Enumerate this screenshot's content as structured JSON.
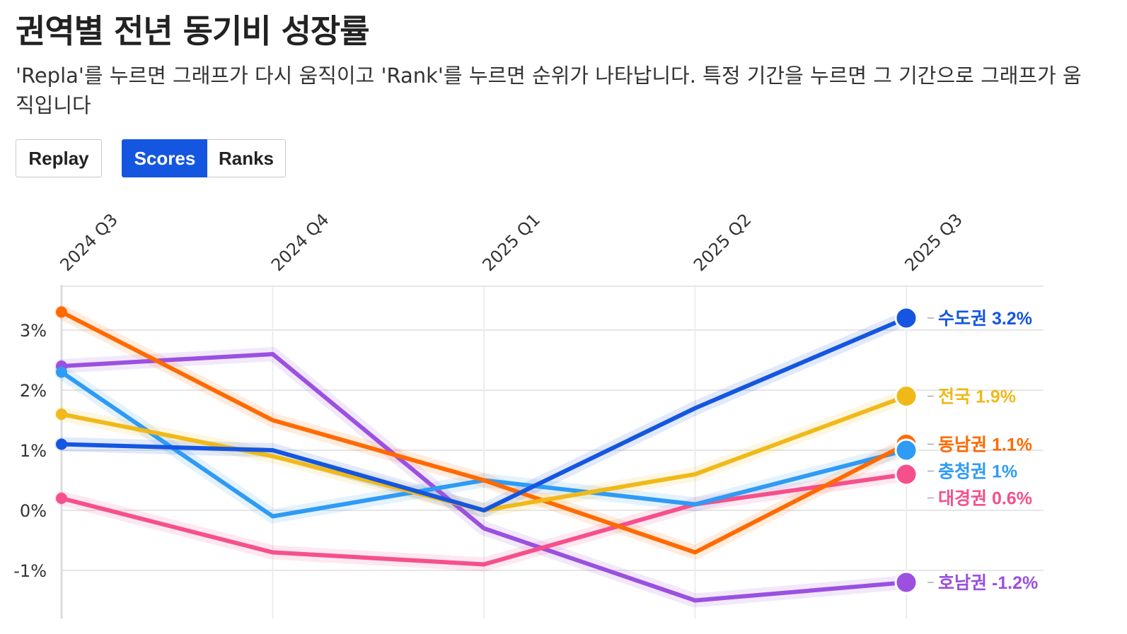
{
  "title": "권역별 전년 동기비 성장률",
  "subtitle": "'Repla'를 누르면 그래프가 다시 움직이고 'Rank'를 누르면 순위가 나타납니다. 특정 기간을 누르면 그 기간으로 그래프가 움직입니다",
  "buttons": {
    "replay": "Replay",
    "scores": "Scores",
    "ranks": "Ranks"
  },
  "chart_data": {
    "type": "line",
    "title": "권역별 전년 동기비 성장률",
    "categories": [
      "2024 Q3",
      "2024 Q4",
      "2025 Q1",
      "2025 Q2",
      "2025 Q3"
    ],
    "ylim": [
      -1.8,
      3.8
    ],
    "yticks": [
      -1,
      0,
      1,
      2,
      3
    ],
    "ytick_labels": [
      "-1%",
      "0%",
      "1%",
      "2%",
      "3%"
    ],
    "series": [
      {
        "name": "수도권",
        "color": "#1456e0",
        "values": [
          1.1,
          1.0,
          0.0,
          1.7,
          3.2
        ],
        "end_value": "3.2%"
      },
      {
        "name": "전국",
        "color": "#f0b91a",
        "values": [
          1.6,
          0.9,
          0.0,
          0.6,
          1.9
        ],
        "end_value": "1.9%"
      },
      {
        "name": "동남권",
        "color": "#ff6a00",
        "values": [
          3.3,
          1.5,
          0.5,
          -0.7,
          1.1
        ],
        "end_value": "1.1%"
      },
      {
        "name": "충청권",
        "color": "#2e9bf5",
        "values": [
          2.3,
          -0.1,
          0.5,
          0.1,
          1.0
        ],
        "end_value": "1%"
      },
      {
        "name": "대경권",
        "color": "#f5508c",
        "values": [
          0.2,
          -0.7,
          -0.9,
          0.1,
          0.6
        ],
        "end_value": "0.6%"
      },
      {
        "name": "호남권",
        "color": "#9b50e0",
        "values": [
          2.4,
          2.6,
          -0.3,
          -1.5,
          -1.2
        ],
        "end_value": "-1.2%"
      }
    ]
  }
}
